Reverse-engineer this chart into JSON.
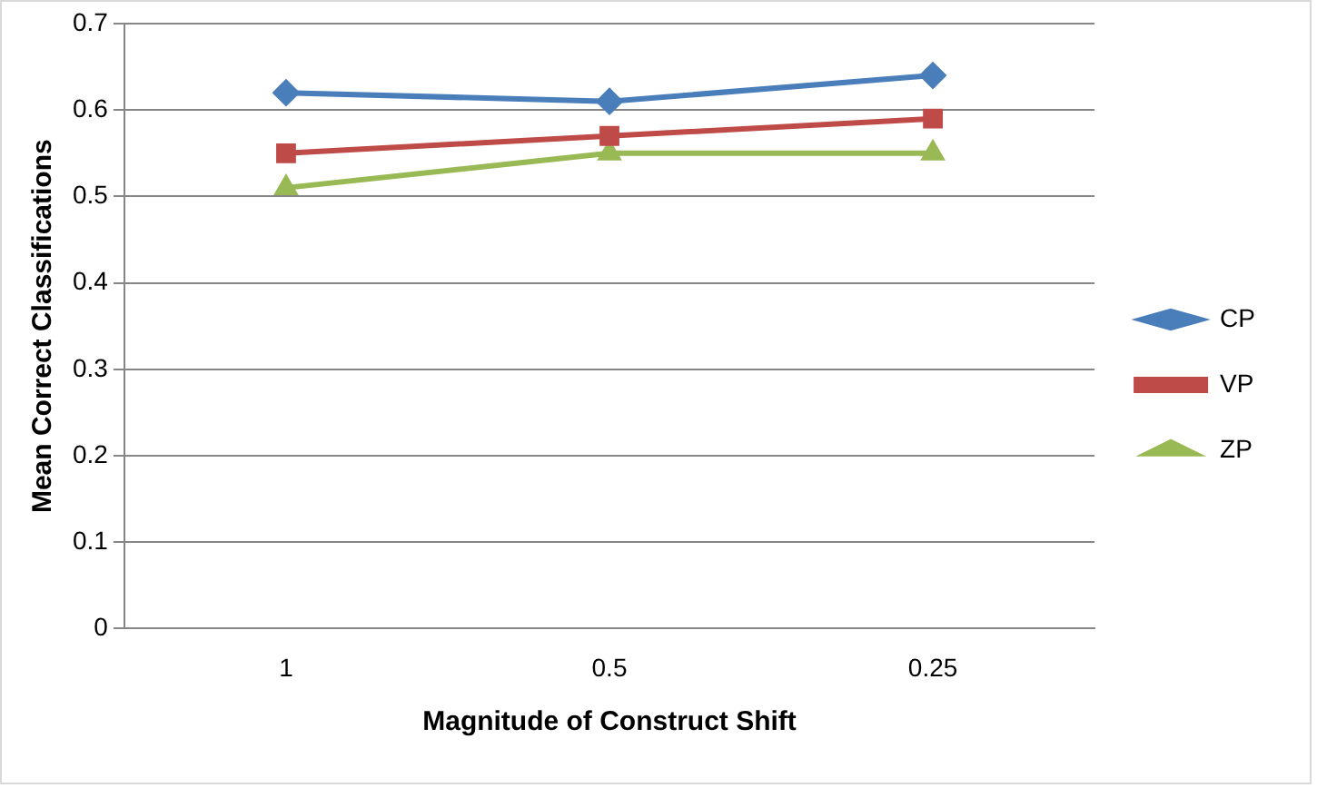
{
  "chart_data": {
    "type": "line",
    "xlabel": "Magnitude of Construct Shift",
    "ylabel": "Mean Correct Classifications",
    "categories": [
      "1",
      "0.5",
      "0.25"
    ],
    "series": [
      {
        "name": "CP",
        "color": "#4a7ebb",
        "marker": "diamond",
        "values": [
          0.62,
          0.61,
          0.64
        ]
      },
      {
        "name": "VP",
        "color": "#be4b48",
        "marker": "square",
        "values": [
          0.55,
          0.57,
          0.59
        ]
      },
      {
        "name": "ZP",
        "color": "#98b954",
        "marker": "triangle",
        "values": [
          0.51,
          0.55,
          0.55
        ]
      }
    ],
    "ylim": [
      0,
      0.7
    ],
    "yticks": [
      0,
      0.1,
      0.2,
      0.3,
      0.4,
      0.5,
      0.6,
      0.7
    ],
    "grid": "y",
    "legend": "right"
  }
}
